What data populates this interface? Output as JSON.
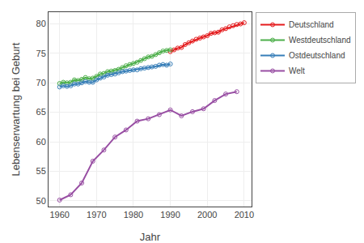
{
  "chart_data": {
    "type": "line",
    "xlabel": "Jahr",
    "ylabel": "Lebenserwartung bei Geburt",
    "xlim": [
      1957,
      2012
    ],
    "ylim": [
      49,
      82
    ],
    "xticks": [
      1960,
      1970,
      1980,
      1990,
      2000,
      2010
    ],
    "yticks": [
      50,
      55,
      60,
      65,
      70,
      75,
      80
    ],
    "grid": true,
    "legend": "right",
    "marker": "circle-open",
    "line_style": "solid",
    "series": [
      {
        "name": "Deutschland",
        "color": "#e41a1c",
        "x": [
          1990,
          1991,
          1992,
          1993,
          1994,
          1995,
          1996,
          1997,
          1998,
          1999,
          2000,
          2001,
          2002,
          2003,
          2004,
          2005,
          2006,
          2007,
          2008,
          2009,
          2010
        ],
        "values": [
          75.3,
          75.6,
          75.9,
          76.0,
          76.5,
          76.8,
          77.1,
          77.4,
          77.6,
          77.8,
          78.0,
          78.4,
          78.5,
          78.6,
          79.0,
          79.2,
          79.5,
          79.7,
          79.9,
          80.0,
          80.2
        ]
      },
      {
        "name": "Westdeutschland",
        "color": "#4daf4a",
        "x": [
          1960,
          1961,
          1962,
          1963,
          1964,
          1965,
          1966,
          1967,
          1968,
          1969,
          1970,
          1971,
          1972,
          1973,
          1974,
          1975,
          1976,
          1977,
          1978,
          1979,
          1980,
          1981,
          1982,
          1983,
          1984,
          1985,
          1986,
          1987,
          1988,
          1989,
          1990
        ],
        "values": [
          69.9,
          70.1,
          70.0,
          70.1,
          70.5,
          70.4,
          70.6,
          70.9,
          70.7,
          70.8,
          71.1,
          71.5,
          71.6,
          71.9,
          72.0,
          72.1,
          72.3,
          72.6,
          72.9,
          73.1,
          73.3,
          73.5,
          73.8,
          74.1,
          74.4,
          74.5,
          74.8,
          75.1,
          75.4,
          75.5,
          75.6
        ]
      },
      {
        "name": "Ostdeutschland",
        "color": "#377eb8",
        "x": [
          1960,
          1961,
          1962,
          1963,
          1964,
          1965,
          1966,
          1967,
          1968,
          1969,
          1970,
          1971,
          1972,
          1973,
          1974,
          1975,
          1976,
          1977,
          1978,
          1979,
          1980,
          1981,
          1982,
          1983,
          1984,
          1985,
          1986,
          1987,
          1988,
          1989,
          1990
        ],
        "values": [
          69.3,
          69.5,
          69.4,
          69.5,
          69.8,
          69.8,
          70.0,
          70.2,
          70.1,
          70.1,
          70.5,
          70.8,
          71.0,
          71.3,
          71.4,
          71.5,
          71.7,
          71.9,
          72.0,
          72.1,
          72.2,
          72.2,
          72.4,
          72.5,
          72.6,
          72.7,
          72.8,
          73.0,
          73.1,
          73.0,
          73.2
        ]
      },
      {
        "name": "Welt",
        "color": "#984ea3",
        "x": [
          1960,
          1963,
          1966,
          1969,
          1972,
          1975,
          1978,
          1981,
          1984,
          1987,
          1990,
          1993,
          1996,
          1999,
          2002,
          2005,
          2008
        ],
        "values": [
          50.1,
          51.0,
          53.0,
          56.7,
          58.6,
          60.8,
          62.0,
          63.5,
          63.9,
          64.6,
          65.4,
          64.4,
          65.1,
          65.6,
          67.0,
          68.1,
          68.5
        ]
      }
    ]
  }
}
